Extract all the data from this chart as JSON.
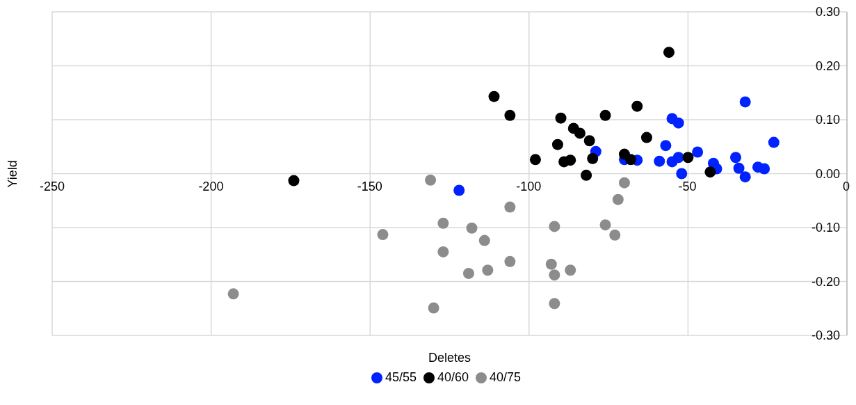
{
  "chart_data": {
    "type": "scatter",
    "xlabel": "Deletes",
    "ylabel": "Yield",
    "xlim": [
      -250,
      0
    ],
    "xticks": [
      -250,
      -200,
      -150,
      -100,
      -50,
      0
    ],
    "ylim": [
      -0.3,
      0.3
    ],
    "yticks": [
      {
        "value": -0.3,
        "label": "-0.30"
      },
      {
        "value": -0.2,
        "label": "-0.20"
      },
      {
        "value": -0.1,
        "label": "-0.10"
      },
      {
        "value": 0,
        "label": "0.00"
      },
      {
        "value": 0.1,
        "label": "0.10"
      },
      {
        "value": 0.2,
        "label": "0.20"
      },
      {
        "value": 0.3,
        "label": "0.30"
      }
    ],
    "grid": true,
    "legend": "bottom",
    "marker": "circle",
    "series": [
      {
        "name": "45/55",
        "color": "#0022ff",
        "x": [
          -122,
          -79,
          -70,
          -66,
          -59,
          -57,
          -55,
          -53,
          -55,
          -53,
          -52,
          -47,
          -42,
          -41,
          -35,
          -34,
          -32,
          -32,
          -28,
          -26,
          -23
        ],
        "values": [
          -0.031,
          0.041,
          0.026,
          0.025,
          0.023,
          0.052,
          0.102,
          0.094,
          0.022,
          0.03,
          0.0,
          0.04,
          0.019,
          0.009,
          0.03,
          0.01,
          -0.006,
          0.133,
          0.012,
          0.009,
          0.058
        ]
      },
      {
        "name": "40/60",
        "color": "#000000",
        "x": [
          -174,
          -111,
          -106,
          -98,
          -90,
          -91,
          -89,
          -87,
          -86,
          -84,
          -81,
          -80,
          -82,
          -76,
          -70,
          -68,
          -66,
          -63,
          -56,
          -50,
          -43
        ],
        "values": [
          -0.013,
          0.143,
          0.108,
          0.026,
          0.103,
          0.054,
          0.022,
          0.025,
          0.084,
          0.075,
          0.061,
          0.028,
          -0.003,
          0.108,
          0.036,
          0.026,
          0.125,
          0.067,
          0.225,
          0.03,
          0.003
        ]
      },
      {
        "name": "40/75",
        "color": "#8c8c8c",
        "x": [
          -193,
          -146,
          -131,
          -130,
          -127,
          -127,
          -118,
          -114,
          -106,
          -106,
          -119,
          -113,
          -92,
          -93,
          -92,
          -87,
          -92,
          -70,
          -72,
          -76,
          -73
        ],
        "values": [
          -0.223,
          -0.113,
          -0.012,
          -0.249,
          -0.092,
          -0.145,
          -0.101,
          -0.124,
          -0.062,
          -0.163,
          -0.185,
          -0.179,
          -0.098,
          -0.168,
          -0.188,
          -0.179,
          -0.241,
          -0.017,
          -0.048,
          -0.095,
          -0.114
        ]
      }
    ]
  }
}
